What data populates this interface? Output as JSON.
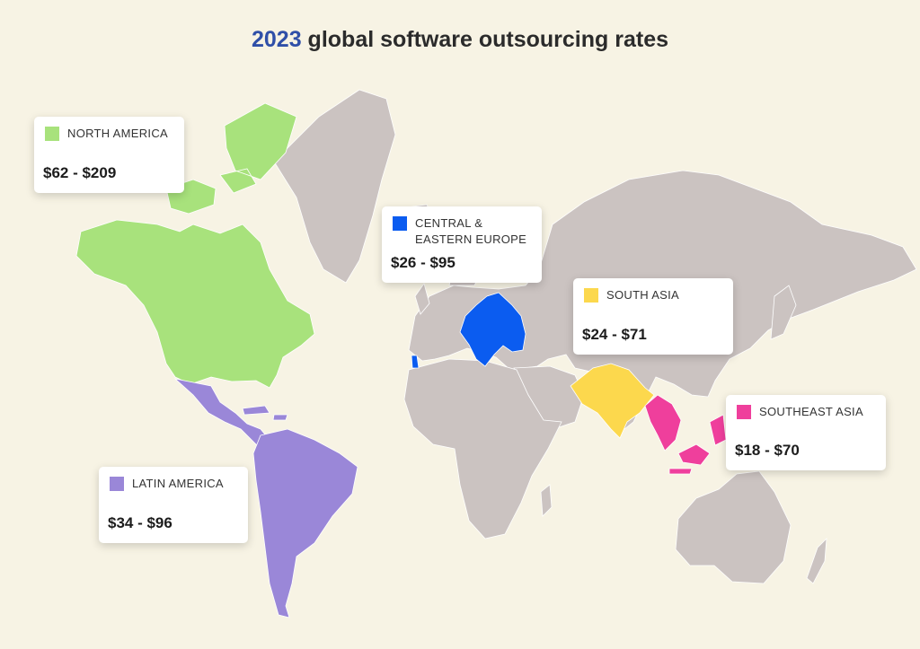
{
  "title": {
    "year": "2023",
    "rest": " global software outsourcing rates"
  },
  "colors": {
    "land": "#cbc3c1",
    "north_america": "#a8e27c",
    "central_eastern_europe": "#0b5cf0",
    "south_asia": "#fcd84d",
    "southeast_asia": "#ef3f9c",
    "latin_america": "#9a87d8"
  },
  "regions": {
    "north_america": {
      "label": "NORTH AMERICA",
      "rate": "$62 - $209",
      "icon": "green-square-icon"
    },
    "central_eastern_europe": {
      "label": "CENTRAL & EASTERN EUROPE",
      "rate": "$26 - $95",
      "icon": "blue-square-icon"
    },
    "south_asia": {
      "label": "SOUTH ASIA",
      "rate": "$24 - $71",
      "icon": "yellow-square-icon"
    },
    "southeast_asia": {
      "label": "SOUTHEAST ASIA",
      "rate": "$18 - $70",
      "icon": "pink-square-icon"
    },
    "latin_america": {
      "label": "LATIN AMERICA",
      "rate": "$34 - $96",
      "icon": "purple-square-icon"
    }
  }
}
